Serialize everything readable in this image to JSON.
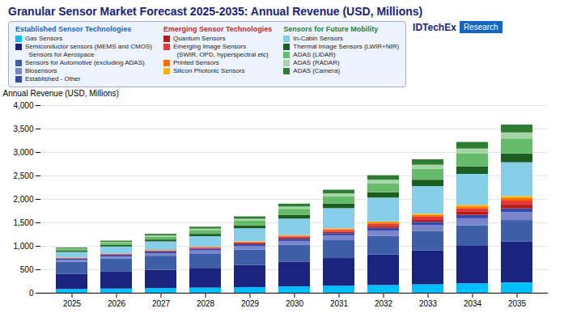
{
  "chart_data": {
    "type": "bar",
    "stacked": true,
    "title": "Granular Sensor Market Forecast 2025-2035: Annual Revenue (USD, Millions)",
    "ylabel": "Annual Revenue (USD, Millions)",
    "categories": [
      "2025",
      "2026",
      "2027",
      "2028",
      "2029",
      "2030",
      "2031",
      "2032",
      "2033",
      "2034",
      "2035"
    ],
    "series": [
      {
        "name": "Gas Sensors",
        "color": "#00BFFF",
        "group": "Established Sensor Technologies",
        "values": [
          80,
          90,
          100,
          110,
          120,
          135,
          150,
          165,
          180,
          200,
          220
        ]
      },
      {
        "name": "Semiconductor sensors (MEMS and CMOS)\n  Sensors for Aerospace",
        "color": "#1A237E",
        "group": "Established Sensor Technologies",
        "values": [
          320,
          360,
          390,
          420,
          470,
          530,
          590,
          650,
          720,
          800,
          870
        ]
      },
      {
        "name": "Sensors for Automotive (excluding ADAS)",
        "color": "#3F5EA8",
        "group": "Established Sensor Technologies",
        "values": [
          260,
          280,
          300,
          310,
          330,
          355,
          380,
          400,
          420,
          440,
          460
        ]
      },
      {
        "name": "Biosensors",
        "color": "#7986CB",
        "group": "Established Sensor Technologies",
        "values": [
          40,
          48,
          55,
          62,
          72,
          85,
          98,
          112,
          128,
          148,
          168
        ]
      },
      {
        "name": "Established - Other",
        "color": "#3949AB",
        "group": "Established Sensor Technologies",
        "values": [
          30,
          33,
          36,
          39,
          43,
          48,
          53,
          58,
          65,
          72,
          80
        ]
      },
      {
        "name": "Quantum Sensors",
        "color": "#B71C1C",
        "group": "Emerging Sensor Technologies",
        "values": [
          5,
          7,
          9,
          12,
          16,
          22,
          30,
          40,
          52,
          65,
          80
        ]
      },
      {
        "name": "Emerging Image Sensors\n  (SWIR, OPD, hyperspectral etc)",
        "color": "#E53935",
        "group": "Emerging Sensor Technologies",
        "values": [
          8,
          10,
          13,
          17,
          22,
          28,
          36,
          46,
          58,
          72,
          88
        ]
      },
      {
        "name": "Printed Sensors",
        "color": "#FF6D00",
        "group": "Emerging Sensor Technologies",
        "values": [
          4,
          5,
          7,
          9,
          12,
          16,
          21,
          27,
          34,
          43,
          53
        ]
      },
      {
        "name": "Silicon Photonic Sensors",
        "color": "#FFB300",
        "group": "Emerging Sensor Technologies",
        "values": [
          3,
          4,
          5,
          7,
          9,
          12,
          16,
          21,
          27,
          34,
          43
        ]
      },
      {
        "name": "In-Cabin Sensors",
        "color": "#87CEEB",
        "group": "Sensors for Future Mobility",
        "values": [
          120,
          150,
          180,
          220,
          280,
          350,
          430,
          510,
          590,
          660,
          720
        ]
      },
      {
        "name": "Thermal Image Sensors (LWIR+NIR)",
        "color": "#1B5E20",
        "group": "Sensors for Future Mobility",
        "values": [
          25,
          32,
          40,
          50,
          62,
          78,
          95,
          114,
          136,
          160,
          188
        ]
      },
      {
        "name": "ADAS (LiDAR)",
        "color": "#66BB6A",
        "group": "Sensors for Future Mobility",
        "values": [
          35,
          48,
          64,
          82,
          104,
          130,
          160,
          193,
          230,
          272,
          318
        ]
      },
      {
        "name": "ADAS (RADAR)",
        "color": "#A5D6A7",
        "group": "Sensors for Future Mobility",
        "values": [
          15,
          19,
          24,
          30,
          38,
          48,
          60,
          74,
          90,
          109,
          130
        ]
      },
      {
        "name": "ADAS (Camera)",
        "color": "#2E7D32",
        "group": "Sensors for Future Mobility",
        "values": [
          20,
          25,
          32,
          40,
          50,
          63,
          78,
          96,
          116,
          140,
          167
        ]
      }
    ],
    "legend_groups": [
      {
        "name": "Established Sensor Technologies",
        "color": "#1565C0"
      },
      {
        "name": "Emerging Sensor Technologies",
        "color": "#C62828"
      },
      {
        "name": "Sensors for Future Mobility",
        "color": "#2E7D32"
      }
    ],
    "annotations": [
      {
        "text": "IDTechEx"
      },
      {
        "text": "Research"
      }
    ],
    "title_color": "#1A237E",
    "ylim": [
      0,
      4000
    ],
    "yticks": [
      0,
      500,
      1000,
      1500,
      2000,
      2500,
      3000,
      3500,
      4000
    ],
    "grid": true,
    "legend": "top"
  }
}
